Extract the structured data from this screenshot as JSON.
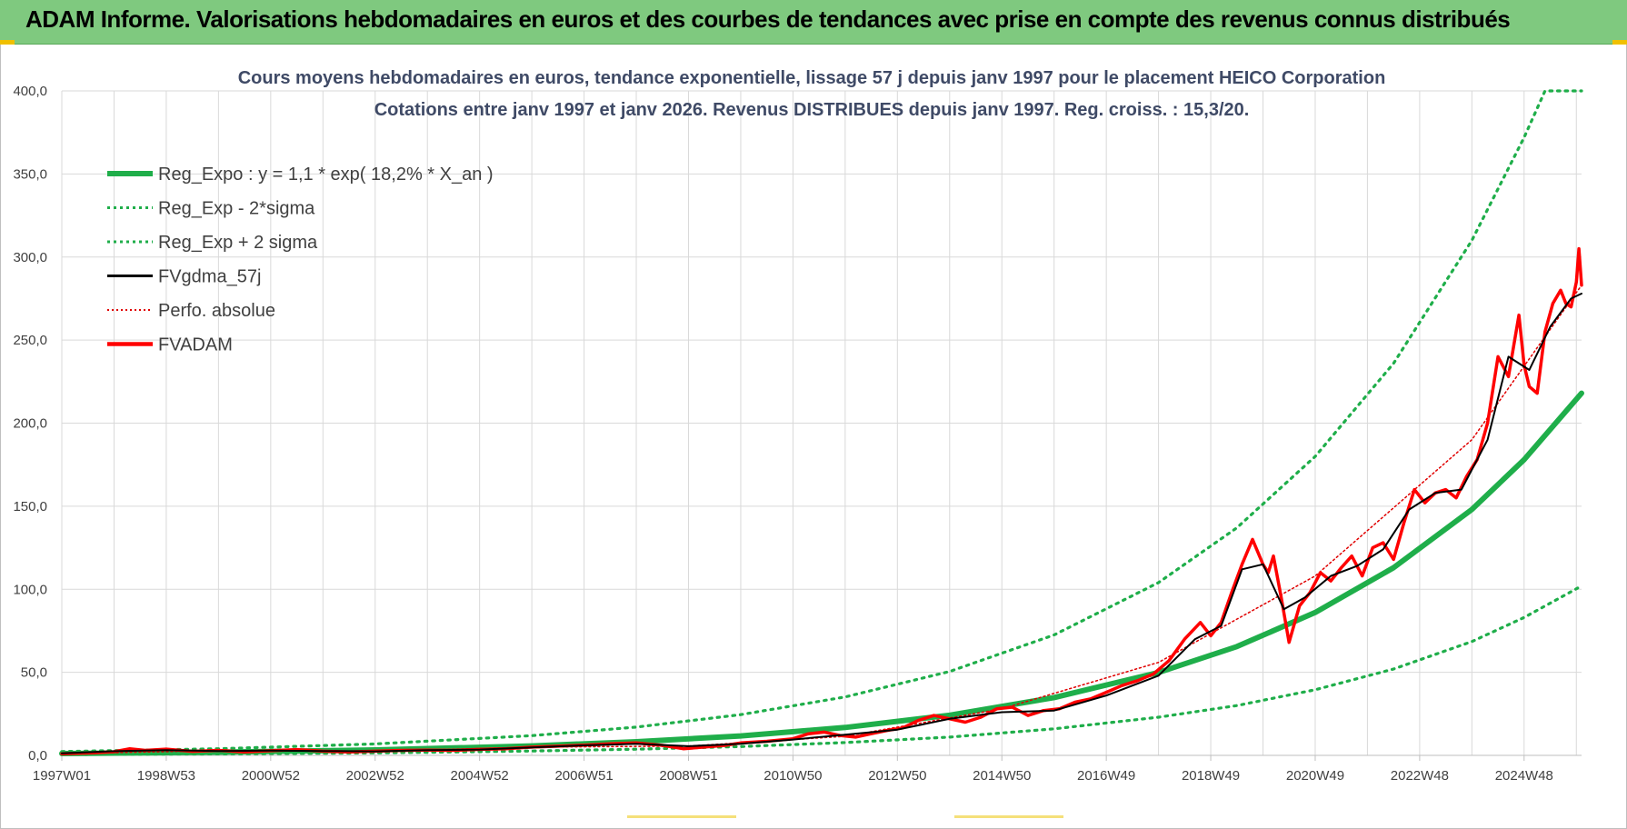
{
  "banner": {
    "title": "ADAM Informe. Valorisations hebdomadaires en euros et des courbes de tendances avec prise en compte des revenus connus distribués"
  },
  "colors": {
    "banner_bg": "#7fc97f",
    "reg_expo": "#1fae4a",
    "sigma": "#1fae4a",
    "fvgdma": "#000000",
    "perfo": "#e00000",
    "fvadam": "#ff0000",
    "grid": "#d9d9d9"
  },
  "chart_data": {
    "type": "line",
    "title_line1": "Cours moyens hebdomadaires en euros, tendance exponentielle, lissage 57 j depuis janv 1997 pour le placement HEICO Corporation",
    "title_line2": "Cotations entre janv 1997 et janv 2026. Revenus DISTRIBUES depuis janv 1997. Reg. croiss. : 15,3/20.",
    "xlabel": "",
    "ylabel": "",
    "ylim": [
      0,
      400
    ],
    "xlim": [
      1997.0,
      2026.1
    ],
    "y_ticks": [
      "0,0",
      "50,0",
      "100,0",
      "150,0",
      "200,0",
      "250,0",
      "300,0",
      "350,0",
      "400,0"
    ],
    "x_ticks": [
      {
        "label": "1997W01",
        "year": 1997.0
      },
      {
        "label": "1998W53",
        "year": 1999.0
      },
      {
        "label": "2000W52",
        "year": 2001.0
      },
      {
        "label": "2002W52",
        "year": 2003.0
      },
      {
        "label": "2004W52",
        "year": 2005.0
      },
      {
        "label": "2006W51",
        "year": 2007.0
      },
      {
        "label": "2008W51",
        "year": 2009.0
      },
      {
        "label": "2010W50",
        "year": 2011.0
      },
      {
        "label": "2012W50",
        "year": 2013.0
      },
      {
        "label": "2014W50",
        "year": 2015.0
      },
      {
        "label": "2016W49",
        "year": 2017.0
      },
      {
        "label": "2018W49",
        "year": 2019.0
      },
      {
        "label": "2020W49",
        "year": 2021.0
      },
      {
        "label": "2022W48",
        "year": 2023.0
      },
      {
        "label": "2024W48",
        "year": 2025.0
      }
    ],
    "legend": [
      {
        "key": "reg_expo",
        "label": "Reg_Expo : y = 1,1 * exp( 18,2% *  X_an )",
        "style": "solid-thick"
      },
      {
        "key": "sigma_low",
        "label": "Reg_Exp - 2*sigma",
        "style": "dotted"
      },
      {
        "key": "sigma_high",
        "label": "Reg_Exp + 2 sigma",
        "style": "dotted"
      },
      {
        "key": "fvgdma",
        "label": "FVgdma_57j",
        "style": "solid"
      },
      {
        "key": "perfo",
        "label": "Perfo. absolue",
        "style": "dotted-thin"
      },
      {
        "key": "fvadam",
        "label": "FVADAM",
        "style": "solid-thick"
      }
    ],
    "regression": {
      "a": 1.1,
      "b": 0.182,
      "x0": 1997.0
    },
    "series": [
      {
        "name": "Reg_Exp + 2 sigma",
        "key": "sigma_high",
        "x": [
          1997.0,
          2000.0,
          2003.0,
          2006.0,
          2008.0,
          2010.0,
          2012.0,
          2014.0,
          2016.0,
          2018.0,
          2019.5,
          2021.0,
          2022.5,
          2024.0,
          2025.0,
          2025.4,
          2026.1
        ],
        "values": [
          2.3,
          4.0,
          6.9,
          11.9,
          17.0,
          24.5,
          35.2,
          50.5,
          72.5,
          104.0,
          137.0,
          180.0,
          236.0,
          310.0,
          372.0,
          400.0,
          400.0
        ]
      },
      {
        "name": "Reg_Expo",
        "key": "reg_expo",
        "x": [
          1997.0,
          2000.0,
          2003.0,
          2006.0,
          2008.0,
          2010.0,
          2012.0,
          2014.0,
          2016.0,
          2018.0,
          2019.5,
          2021.0,
          2022.5,
          2024.0,
          2025.0,
          2026.1
        ],
        "values": [
          1.1,
          1.9,
          3.3,
          5.7,
          8.2,
          11.7,
          16.8,
          24.2,
          34.8,
          49.9,
          65.5,
          86.0,
          113.0,
          148.0,
          178.0,
          218.0
        ]
      },
      {
        "name": "Reg_Exp - 2*sigma",
        "key": "sigma_low",
        "x": [
          1997.0,
          2000.0,
          2003.0,
          2006.0,
          2008.0,
          2010.0,
          2012.0,
          2014.0,
          2016.0,
          2018.0,
          2019.5,
          2021.0,
          2022.5,
          2024.0,
          2025.0,
          2026.1
        ],
        "values": [
          0.5,
          0.9,
          1.5,
          2.6,
          3.7,
          5.3,
          7.7,
          11.0,
          16.0,
          23.0,
          30.0,
          39.5,
          52.0,
          68.5,
          83.0,
          102.0
        ]
      },
      {
        "name": "FVADAM",
        "key": "fvadam",
        "x": [
          1997.0,
          1997.6,
          1998.0,
          1998.3,
          1998.6,
          1999.0,
          1999.5,
          2000.0,
          2000.5,
          2001.0,
          2001.5,
          2002.0,
          2002.5,
          2003.0,
          2003.5,
          2004.0,
          2004.5,
          2005.0,
          2005.5,
          2006.0,
          2006.5,
          2007.0,
          2007.5,
          2008.0,
          2008.5,
          2008.9,
          2009.3,
          2009.7,
          2010.0,
          2010.5,
          2011.0,
          2011.3,
          2011.6,
          2011.9,
          2012.2,
          2012.5,
          2012.8,
          2013.1,
          2013.4,
          2013.7,
          2014.0,
          2014.3,
          2014.6,
          2014.9,
          2015.2,
          2015.5,
          2015.8,
          2016.1,
          2016.4,
          2016.7,
          2017.0,
          2017.3,
          2017.6,
          2017.9,
          2018.2,
          2018.5,
          2018.8,
          2019.0,
          2019.2,
          2019.4,
          2019.6,
          2019.8,
          2020.0,
          2020.1,
          2020.2,
          2020.35,
          2020.5,
          2020.7,
          2020.9,
          2021.1,
          2021.3,
          2021.5,
          2021.7,
          2021.9,
          2022.1,
          2022.3,
          2022.5,
          2022.7,
          2022.9,
          2023.1,
          2023.3,
          2023.5,
          2023.7,
          2023.9,
          2024.1,
          2024.3,
          2024.5,
          2024.7,
          2024.9,
          2025.0,
          2025.1,
          2025.25,
          2025.4,
          2025.55,
          2025.7,
          2025.8,
          2025.9,
          2026.0,
          2026.05,
          2026.1
        ],
        "values": [
          1.0,
          1.5,
          2.2,
          4.0,
          3.0,
          3.8,
          2.4,
          3.0,
          2.0,
          2.8,
          3.5,
          2.5,
          2.0,
          2.5,
          3.0,
          3.2,
          3.0,
          3.6,
          4.0,
          5.0,
          5.5,
          6.2,
          7.0,
          7.5,
          6.0,
          4.0,
          5.0,
          6.0,
          7.5,
          8.5,
          10.0,
          13.0,
          14.0,
          12.0,
          11.0,
          13.0,
          15.0,
          16.5,
          21.0,
          24.0,
          22.0,
          20.0,
          23.0,
          28.0,
          29.0,
          24.0,
          27.0,
          28.0,
          32.0,
          34.0,
          38.0,
          42.0,
          45.0,
          49.0,
          57.0,
          70.0,
          80.0,
          72.0,
          80.0,
          98.0,
          115.0,
          130.0,
          115.0,
          110.0,
          120.0,
          95.0,
          68.0,
          90.0,
          98.0,
          110.0,
          105.0,
          113.0,
          120.0,
          108.0,
          125.0,
          128.0,
          118.0,
          140.0,
          160.0,
          152.0,
          158.0,
          160.0,
          155.0,
          168.0,
          178.0,
          200.0,
          240.0,
          228.0,
          265.0,
          235.0,
          222.0,
          218.0,
          255.0,
          272.0,
          280.0,
          272.0,
          270.0,
          285.0,
          305.0,
          283.0
        ]
      },
      {
        "name": "FVgdma_57j",
        "key": "fvgdma",
        "x": [
          1997.0,
          1998.0,
          1999.0,
          2000.0,
          2001.0,
          2002.0,
          2003.0,
          2004.0,
          2005.0,
          2006.0,
          2007.0,
          2008.0,
          2009.0,
          2010.0,
          2011.0,
          2012.0,
          2013.0,
          2014.0,
          2015.0,
          2016.0,
          2017.0,
          2018.0,
          2018.7,
          2019.2,
          2019.6,
          2020.0,
          2020.4,
          2020.8,
          2021.3,
          2021.8,
          2022.3,
          2022.8,
          2023.3,
          2023.8,
          2024.3,
          2024.7,
          2025.1,
          2025.5,
          2025.9,
          2026.1
        ],
        "values": [
          1.2,
          2.5,
          3.2,
          2.6,
          2.9,
          2.6,
          2.4,
          3.1,
          3.5,
          4.8,
          6.0,
          7.0,
          5.5,
          7.0,
          9.5,
          12.5,
          15.5,
          22.0,
          26.0,
          27.0,
          36.0,
          48.0,
          70.0,
          78.0,
          112.0,
          115.0,
          88.0,
          95.0,
          108.0,
          114.0,
          124.0,
          148.0,
          158.0,
          160.0,
          190.0,
          240.0,
          232.0,
          258.0,
          275.0,
          278.0
        ]
      },
      {
        "name": "Perfo. absolue",
        "key": "perfo",
        "x": [
          1997.0,
          2000.0,
          2003.0,
          2006.0,
          2009.0,
          2012.0,
          2015.0,
          2018.0,
          2021.0,
          2024.0,
          2026.1
        ],
        "values": [
          1.0,
          2.9,
          2.4,
          5.0,
          5.6,
          11.5,
          28.0,
          56.0,
          108.0,
          190.0,
          283.0
        ]
      }
    ]
  }
}
